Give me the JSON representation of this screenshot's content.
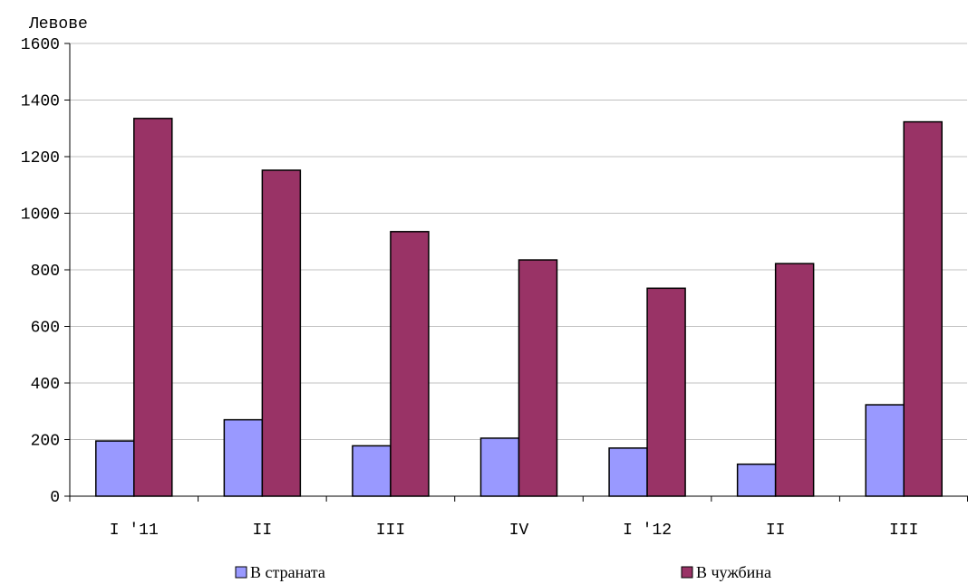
{
  "chart_data": {
    "type": "bar",
    "ylabel": "Левове",
    "ylim": [
      0,
      1600
    ],
    "yticks": [
      0,
      200,
      400,
      600,
      800,
      1000,
      1200,
      1400,
      1600
    ],
    "categories": [
      "I '11",
      "II",
      "III",
      "IV",
      "I '12",
      "II",
      "III"
    ],
    "series": [
      {
        "name": "В страната",
        "color": "#9999ff",
        "values": [
          195,
          270,
          178,
          205,
          170,
          113,
          323
        ]
      },
      {
        "name": "В чужбина",
        "color": "#993366",
        "values": [
          1335,
          1152,
          935,
          835,
          735,
          822,
          1323
        ]
      }
    ],
    "grid": true,
    "legend_position": "bottom"
  }
}
